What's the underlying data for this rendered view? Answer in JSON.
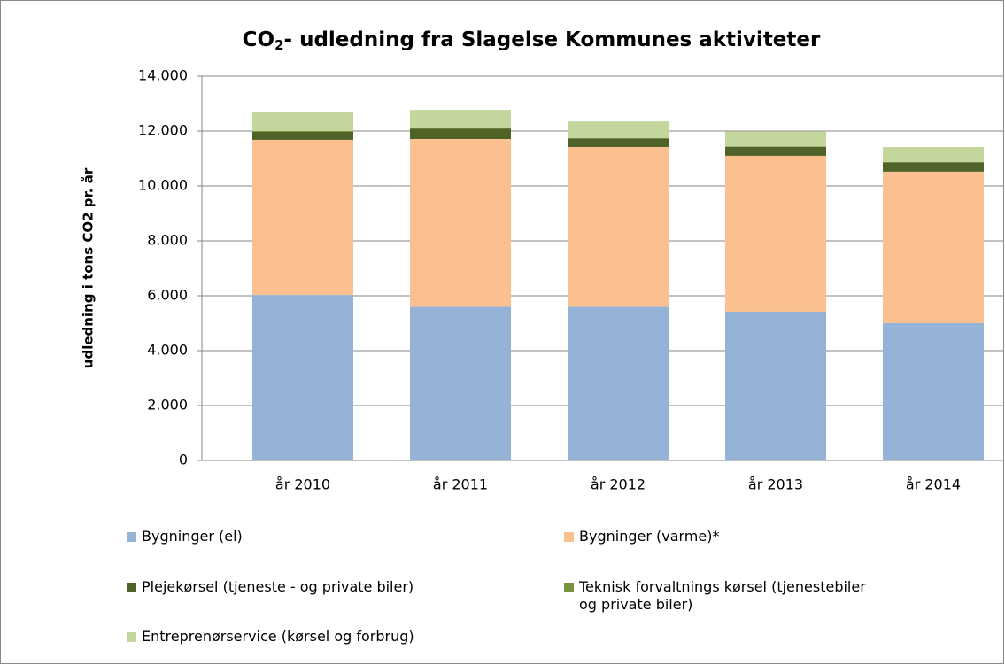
{
  "chart_data": {
    "type": "stacked_bar",
    "title": "CO2- udledning fra Slagelse Kommunes aktiviteter",
    "y_label": "udledning i tons CO2 pr. år",
    "categories": [
      "år 2010",
      "år 2011",
      "år 2012",
      "år 2013",
      "år 2014"
    ],
    "series": [
      {
        "name": "Bygninger (el)",
        "color": "#95b3d7",
        "values": [
          6030,
          5600,
          5600,
          5420,
          5000
        ]
      },
      {
        "name": "Bygninger (varme)*",
        "color": "#fac090",
        "values": [
          5650,
          6110,
          5820,
          5680,
          5520
        ]
      },
      {
        "name": "Plejekørsel (tjeneste - og private biler)",
        "color": "#4f6228",
        "values": [
          290,
          370,
          310,
          330,
          340
        ]
      },
      {
        "name": "Teknisk forvaltnings kørsel (tjenestebiler og private biler)",
        "color": "#77933c",
        "values": [
          30,
          20,
          10,
          10,
          10
        ]
      },
      {
        "name": "Entreprenørservice (kørsel og forbrug)",
        "color": "#c3d69b",
        "values": [
          680,
          670,
          610,
          550,
          550
        ]
      }
    ],
    "ylim": [
      0,
      14000
    ],
    "yticks": [
      0,
      {
        "value": 2000,
        "label": "2.000"
      },
      {
        "value": 4000,
        "label": "4.000"
      },
      {
        "value": 6000,
        "label": "6.000"
      },
      {
        "value": 8000,
        "label": "8.000"
      },
      {
        "value": 10000,
        "label": "10.000"
      },
      {
        "value": 12000,
        "label": "12.000"
      },
      {
        "value": 14000,
        "label": "14.000"
      }
    ],
    "grid": true
  }
}
